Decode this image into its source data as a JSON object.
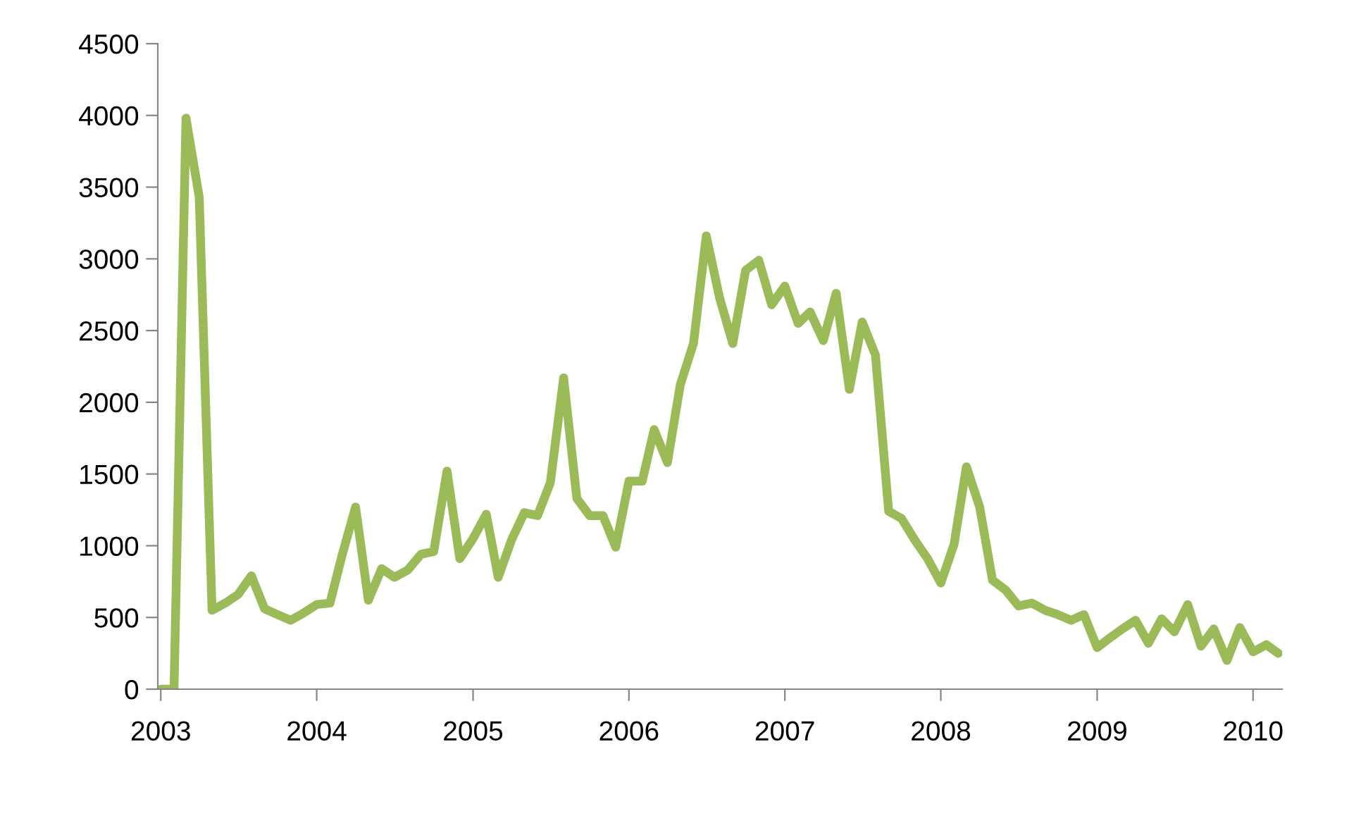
{
  "chart_data": {
    "type": "line",
    "color": "#9bbb59",
    "line_style": "solid",
    "marker": "none",
    "grid": false,
    "x": [
      "2003-01",
      "2003-02",
      "2003-03",
      "2003-04",
      "2003-05",
      "2003-06",
      "2003-07",
      "2003-08",
      "2003-09",
      "2003-10",
      "2003-11",
      "2003-12",
      "2004-01",
      "2004-02",
      "2004-03",
      "2004-04",
      "2004-05",
      "2004-06",
      "2004-07",
      "2004-08",
      "2004-09",
      "2004-10",
      "2004-11",
      "2004-12",
      "2005-01",
      "2005-02",
      "2005-03",
      "2005-04",
      "2005-05",
      "2005-06",
      "2005-07",
      "2005-08",
      "2005-09",
      "2005-10",
      "2005-11",
      "2005-12",
      "2006-01",
      "2006-02",
      "2006-03",
      "2006-04",
      "2006-05",
      "2006-06",
      "2006-07",
      "2006-08",
      "2006-09",
      "2006-10",
      "2006-11",
      "2006-12",
      "2007-01",
      "2007-02",
      "2007-03",
      "2007-04",
      "2007-05",
      "2007-06",
      "2007-07",
      "2007-08",
      "2007-09",
      "2007-10",
      "2007-11",
      "2007-12",
      "2008-01",
      "2008-02",
      "2008-03",
      "2008-04",
      "2008-05",
      "2008-06",
      "2008-07",
      "2008-08",
      "2008-09",
      "2008-10",
      "2008-11",
      "2008-12",
      "2009-01",
      "2009-02",
      "2009-03",
      "2009-04",
      "2009-05",
      "2009-06",
      "2009-07",
      "2009-08",
      "2009-09",
      "2009-10",
      "2009-11",
      "2009-12",
      "2010-01",
      "2010-02",
      "2010-03"
    ],
    "values": [
      0,
      0,
      3980,
      3430,
      550,
      600,
      660,
      790,
      560,
      520,
      480,
      530,
      590,
      600,
      940,
      1270,
      620,
      840,
      780,
      830,
      940,
      960,
      1520,
      910,
      1050,
      1220,
      780,
      1040,
      1230,
      1210,
      1440,
      2170,
      1330,
      1210,
      1210,
      990,
      1450,
      1450,
      1810,
      1580,
      2120,
      2410,
      3160,
      2730,
      2410,
      2920,
      2990,
      2680,
      2810,
      2550,
      2630,
      2430,
      2760,
      2090,
      2560,
      2330,
      1240,
      1190,
      1040,
      910,
      740,
      1010,
      1550,
      1270,
      760,
      690,
      580,
      600,
      550,
      520,
      480,
      520,
      290,
      360,
      420,
      480,
      320,
      490,
      400,
      590,
      300,
      420,
      200,
      430,
      260,
      310,
      250
    ],
    "xlim": [
      "2002-12-25",
      "2010-03-10"
    ],
    "xticks": [
      {
        "value": "2003-01-01",
        "label": "2003"
      },
      {
        "value": "2004-01-01",
        "label": "2004"
      },
      {
        "value": "2005-01-01",
        "label": "2005"
      },
      {
        "value": "2006-01-01",
        "label": "2006"
      },
      {
        "value": "2007-01-01",
        "label": "2007"
      },
      {
        "value": "2008-01-01",
        "label": "2008"
      },
      {
        "value": "2009-01-01",
        "label": "2009"
      },
      {
        "value": "2010-01-01",
        "label": "2010"
      }
    ],
    "ylim": [
      0,
      4500
    ],
    "yticks": [
      0,
      500,
      1000,
      1500,
      2000,
      2500,
      3000,
      3500,
      4000,
      4500
    ]
  }
}
